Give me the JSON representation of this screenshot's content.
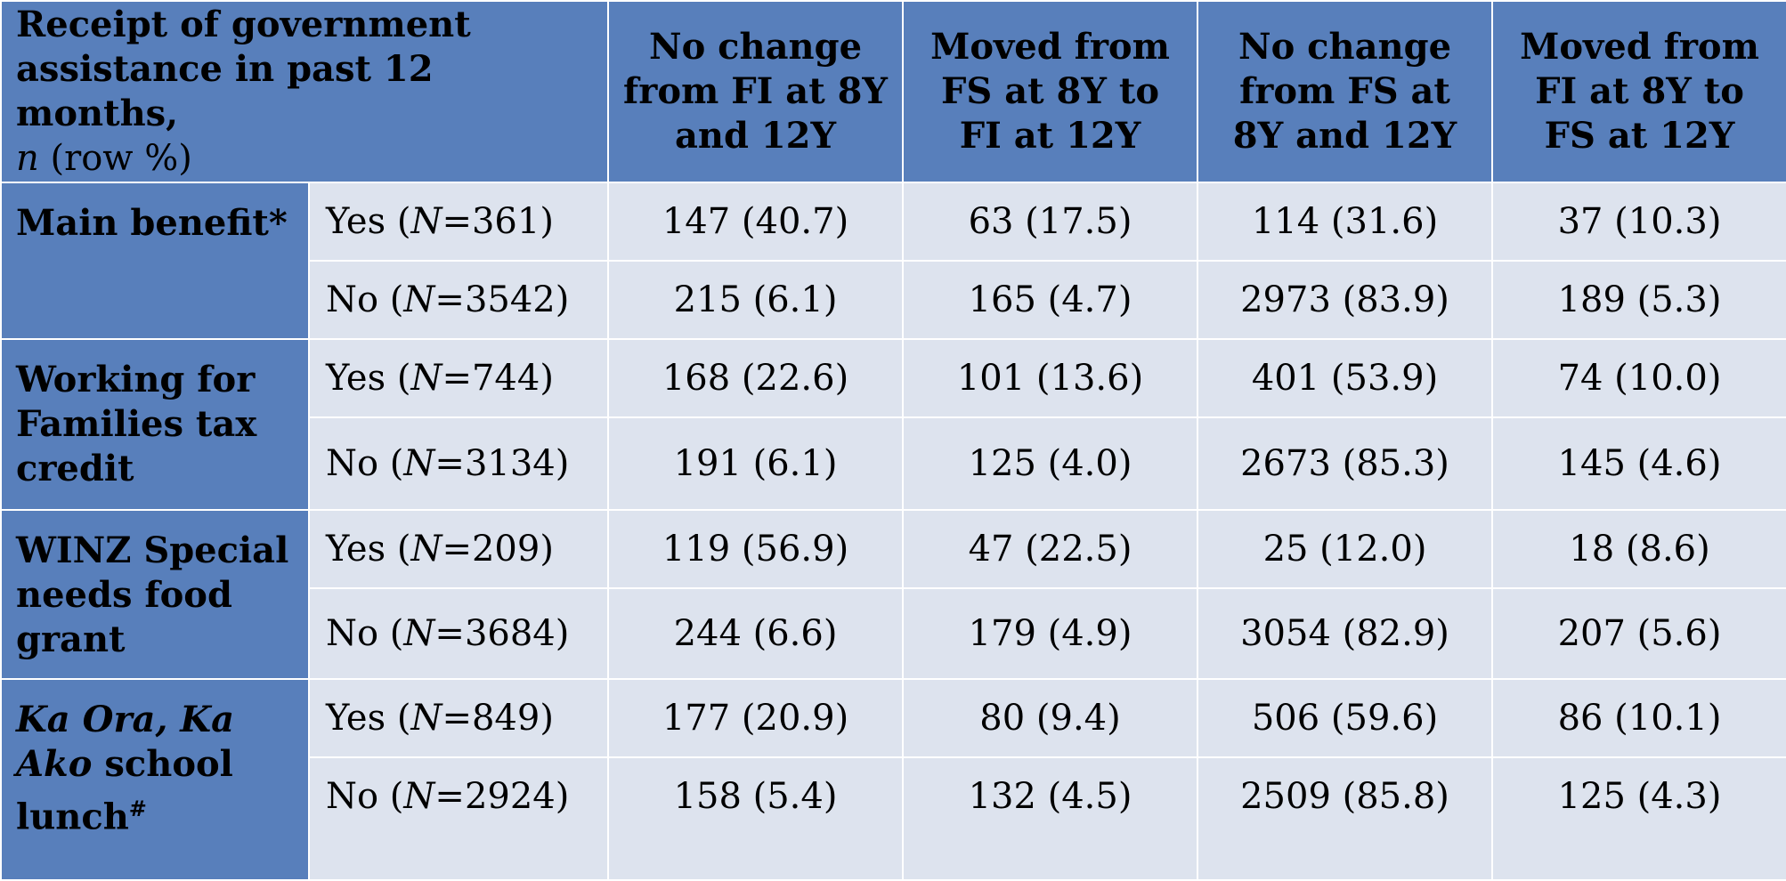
{
  "header": {
    "first_col": {
      "line1": "Receipt of government",
      "line2": "assistance in past 12 months,",
      "n_italic": "n",
      "rest": " (row %)"
    },
    "columns": [
      "No change from FI at 8Y and 12Y",
      "Moved from FS at 8Y to FI at 12Y",
      "No change from FS at 8Y and 12Y",
      "Moved from FI at 8Y to FS at 12Y"
    ]
  },
  "groups": [
    {
      "label": "Main benefit*",
      "rows": [
        {
          "resp": "Yes",
          "n": "361",
          "values": [
            "147 (40.7)",
            "63 (17.5)",
            "114 (31.6)",
            "37 (10.3)"
          ]
        },
        {
          "resp": "No",
          "n": "3542",
          "values": [
            "215 (6.1)",
            "165 (4.7)",
            "2973 (83.9)",
            "189 (5.3)"
          ]
        }
      ]
    },
    {
      "label": "Working for Families tax credit",
      "rows": [
        {
          "resp": "Yes",
          "n": "744",
          "values": [
            "168 (22.6)",
            "101 (13.6)",
            "401 (53.9)",
            "74 (10.0)"
          ]
        },
        {
          "resp": "No",
          "n": "3134",
          "values": [
            "191 (6.1)",
            "125 (4.0)",
            "2673 (85.3)",
            "145 (4.6)"
          ]
        }
      ]
    },
    {
      "label": "WINZ Special needs food grant",
      "rows": [
        {
          "resp": "Yes",
          "n": "209",
          "values": [
            "119 (56.9)",
            "47 (22.5)",
            "25 (12.0)",
            "18 (8.6)"
          ]
        },
        {
          "resp": "No",
          "n": "3684",
          "values": [
            "244 (6.6)",
            "179 (4.9)",
            "3054 (82.9)",
            "207 (5.6)"
          ]
        }
      ]
    },
    {
      "label_italic": "Ka Ora, Ka Ako",
      "label_rest": " school lunch",
      "label_sup": "#",
      "rows": [
        {
          "resp": "Yes",
          "n": "849",
          "values": [
            "177 (20.9)",
            "80 (9.4)",
            "506 (59.6)",
            "86 (10.1)"
          ]
        },
        {
          "resp": "No",
          "n": "2924",
          "values": [
            "158 (5.4)",
            "132 (4.5)",
            "2509 (85.8)",
            "125 (4.3)"
          ]
        }
      ]
    }
  ],
  "n_label": "N",
  "colors": {
    "header_blue": "#587fbb",
    "body_bg": "#dde3ee",
    "grid": "#ffffff"
  }
}
